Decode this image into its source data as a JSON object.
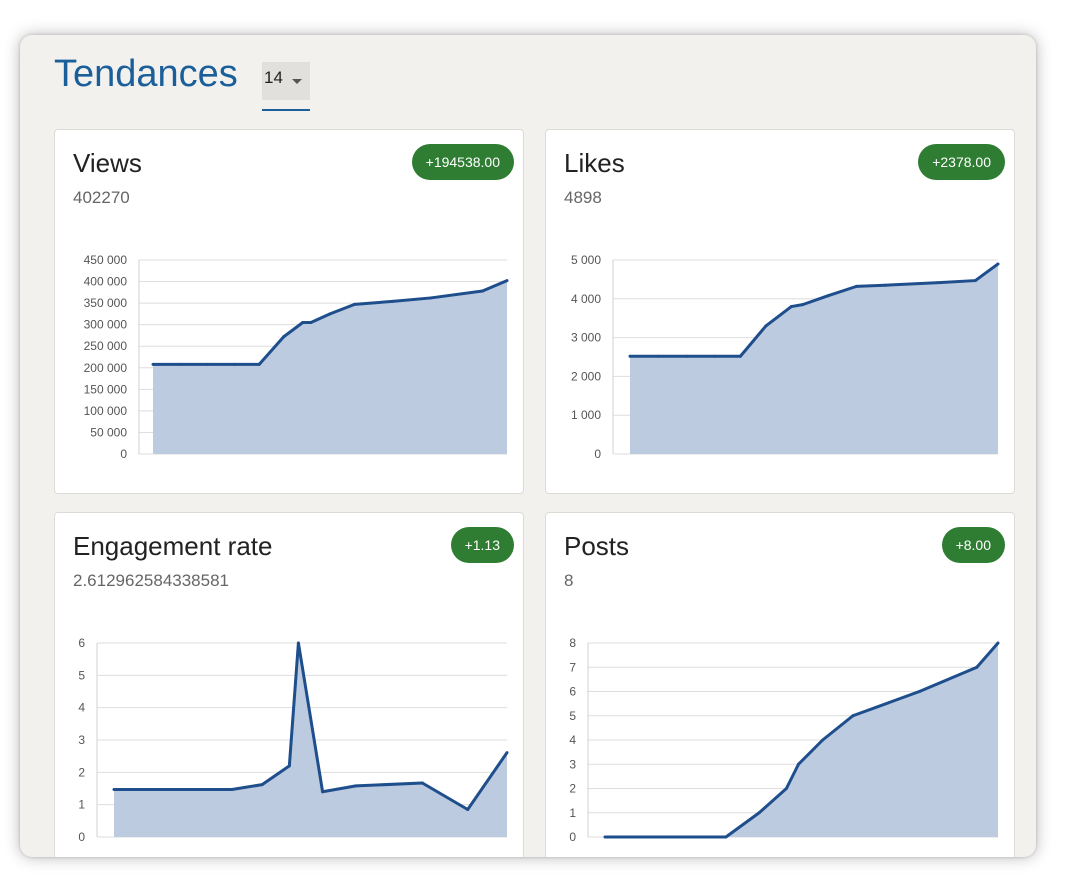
{
  "page": {
    "title": "Tendances",
    "range_value": "14"
  },
  "colors": {
    "accent": "#1a5e9a",
    "line": "#1e4e8c",
    "area": "#bccbdf",
    "badge": "#2e7d32"
  },
  "icons": {
    "range_caret": "chevron-down-icon"
  },
  "cards": [
    {
      "title": "Views",
      "value": "402270",
      "delta": "+194538.00"
    },
    {
      "title": "Likes",
      "value": "4898",
      "delta": "+2378.00"
    },
    {
      "title": "Engagement rate",
      "value": "2.612962584338581",
      "delta": "+1.13"
    },
    {
      "title": "Posts",
      "value": "8",
      "delta": "+8.00"
    }
  ],
  "chart_data": [
    {
      "type": "area",
      "yticks": [
        "0",
        "50 000",
        "100 000",
        "150 000",
        "200 000",
        "250 000",
        "300 000",
        "350 000",
        "400 000",
        "450 000"
      ],
      "ylim": [
        0,
        450000
      ],
      "xlim": [
        0,
        13
      ],
      "x": [
        0,
        1,
        2,
        3,
        3.9,
        4.8,
        5.5,
        5.8,
        6.5,
        7.4,
        8.8,
        10.2,
        12.1,
        13
      ],
      "values": [
        208000,
        208000,
        208000,
        208000,
        208000,
        272000,
        305000,
        305000,
        325000,
        347000,
        354000,
        362000,
        378000,
        402270
      ]
    },
    {
      "type": "area",
      "yticks": [
        "0",
        "1 000",
        "2 000",
        "3 000",
        "4 000",
        "5 000"
      ],
      "ylim": [
        0,
        5000
      ],
      "xlim": [
        0,
        13
      ],
      "x": [
        0,
        1,
        2,
        3,
        3.9,
        4.8,
        5.7,
        6.1,
        7,
        8,
        9,
        11,
        12.2,
        13
      ],
      "values": [
        2520,
        2520,
        2520,
        2520,
        2520,
        3300,
        3800,
        3850,
        4080,
        4320,
        4350,
        4420,
        4470,
        4898
      ]
    },
    {
      "type": "area",
      "yticks": [
        "0",
        "1",
        "2",
        "3",
        "4",
        "5",
        "6"
      ],
      "ylim": [
        0,
        6
      ],
      "xlim": [
        0,
        13
      ],
      "x": [
        0,
        1,
        2,
        3,
        3.9,
        4.9,
        5.8,
        6.1,
        6.9,
        8,
        10.2,
        11.7,
        13
      ],
      "values": [
        1.47,
        1.47,
        1.47,
        1.47,
        1.47,
        1.62,
        2.2,
        6.0,
        1.4,
        1.58,
        1.67,
        0.85,
        2.61
      ]
    },
    {
      "type": "area",
      "yticks": [
        "0",
        "1",
        "2",
        "3",
        "4",
        "5",
        "6",
        "7",
        "8"
      ],
      "ylim": [
        0,
        8
      ],
      "xlim": [
        0,
        13
      ],
      "x": [
        0,
        1,
        2,
        3,
        4,
        5.1,
        6,
        6.4,
        7.2,
        8.2,
        10.4,
        12.3,
        13
      ],
      "values": [
        0,
        0,
        0,
        0,
        0,
        1,
        2,
        3,
        4,
        5,
        6,
        7,
        8
      ]
    }
  ]
}
